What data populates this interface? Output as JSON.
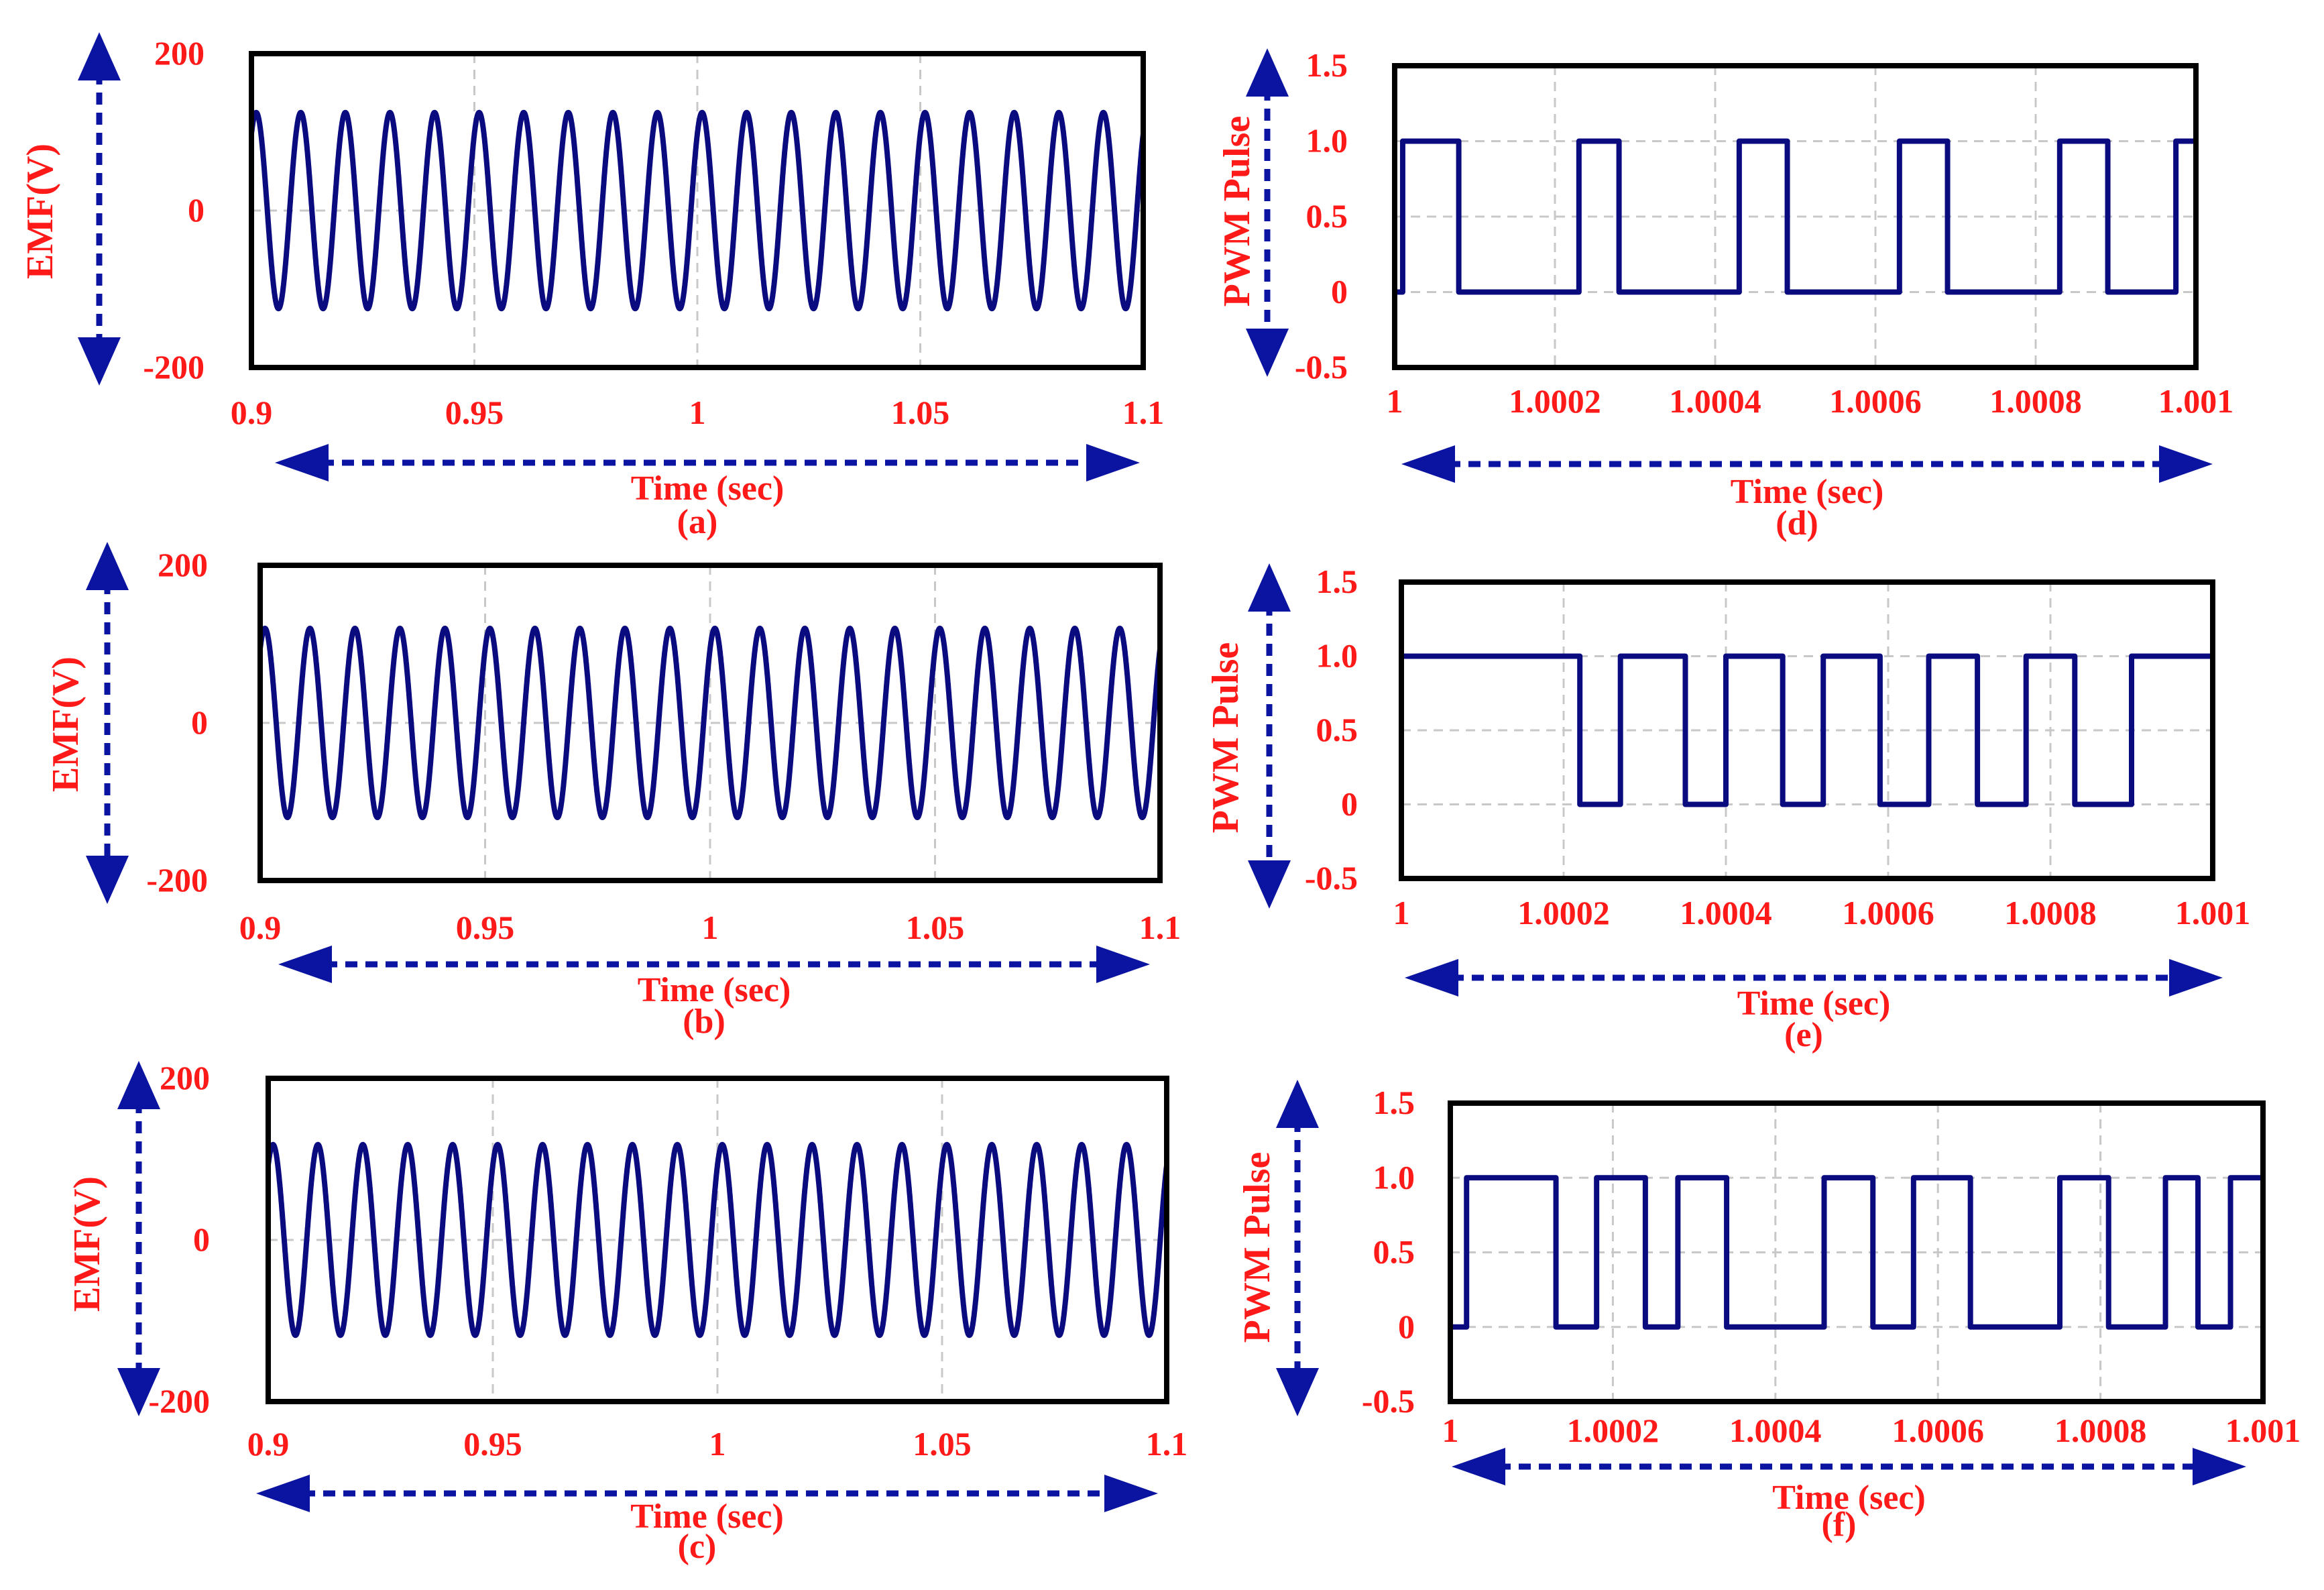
{
  "chart_data": [
    {
      "id": "a",
      "type": "line",
      "caption": "(a)",
      "ylabel": "EMF(V)",
      "xlabel": "Time (sec)",
      "xlim": [
        0.9,
        1.1
      ],
      "ylim": [
        -200,
        200
      ],
      "xticks": [
        "0.9",
        "0.95",
        "1",
        "1.05",
        "1.1"
      ],
      "yticks": [
        "200",
        "0",
        "-200"
      ],
      "series": [
        {
          "amplitude": 125,
          "frequency_hz": 100,
          "shape": "sine"
        }
      ]
    },
    {
      "id": "b",
      "type": "line",
      "caption": "(b)",
      "ylabel": "EMF(V)",
      "xlabel": "Time (sec)",
      "xlim": [
        0.9,
        1.1
      ],
      "ylim": [
        -200,
        200
      ],
      "xticks": [
        "0.9",
        "0.95",
        "1",
        "1.05",
        "1.1"
      ],
      "yticks": [
        "200",
        "0",
        "-200"
      ],
      "series": [
        {
          "amplitude": 120,
          "frequency_hz": 100,
          "shape": "sine"
        }
      ]
    },
    {
      "id": "c",
      "type": "line",
      "caption": "(c)",
      "ylabel": "EMF(V)",
      "xlabel": "Time (sec)",
      "xlim": [
        0.9,
        1.1
      ],
      "ylim": [
        -200,
        200
      ],
      "xticks": [
        "0.9",
        "0.95",
        "1",
        "1.05",
        "1.1"
      ],
      "yticks": [
        "200",
        "0",
        "-200"
      ],
      "series": [
        {
          "amplitude": 118,
          "frequency_hz": 100,
          "shape": "sine"
        }
      ]
    },
    {
      "id": "d",
      "type": "line",
      "caption": "(d)",
      "ylabel": "PWM Pulse",
      "xlabel": "Time (sec)",
      "xlim": [
        1,
        1.001
      ],
      "ylim": [
        -0.5,
        1.5
      ],
      "xticks": [
        "1",
        "1.0002",
        "1.0004",
        "1.0006",
        "1.0008",
        "1.001"
      ],
      "yticks": [
        "1.5",
        "1.0",
        "0.5",
        "0",
        "-0.5"
      ],
      "series": [
        {
          "shape": "step",
          "high_intervals": [
            [
              1.00001,
              1.00008
            ],
            [
              1.00023,
              1.00028
            ],
            [
              1.00043,
              1.00049
            ],
            [
              1.00063,
              1.00069
            ],
            [
              1.00083,
              1.00089
            ],
            [
              1.000975,
              1.001
            ]
          ]
        }
      ]
    },
    {
      "id": "e",
      "type": "line",
      "caption": "(e)",
      "ylabel": "PWM Pulse",
      "xlabel": "Time (sec)",
      "xlim": [
        1,
        1.001
      ],
      "ylim": [
        -0.5,
        1.5
      ],
      "xticks": [
        "1",
        "1.0002",
        "1.0004",
        "1.0006",
        "1.0008",
        "1.001"
      ],
      "yticks": [
        "1.5",
        "1.0",
        "0.5",
        "0",
        "-0.5"
      ],
      "series": [
        {
          "shape": "step",
          "high_intervals": [
            [
              1.0,
              1.00022
            ],
            [
              1.00027,
              1.00035
            ],
            [
              1.0004,
              1.00047
            ],
            [
              1.00052,
              1.00059
            ],
            [
              1.00065,
              1.00071
            ],
            [
              1.00077,
              1.00083
            ],
            [
              1.0009,
              1.001
            ]
          ]
        }
      ]
    },
    {
      "id": "f",
      "type": "line",
      "caption": "(f)",
      "ylabel": "PWM Pulse",
      "xlabel": "Time (sec)",
      "xlim": [
        1,
        1.001
      ],
      "ylim": [
        -0.5,
        1.5
      ],
      "xticks": [
        "1",
        "1.0002",
        "1.0004",
        "1.0006",
        "1.0008",
        "1.001"
      ],
      "yticks": [
        "1.5",
        "1.0",
        "0.5",
        "0",
        "-0.5"
      ],
      "series": [
        {
          "shape": "step",
          "high_intervals": [
            [
              1.00002,
              1.00013
            ],
            [
              1.00018,
              1.00024
            ],
            [
              1.00028,
              1.00034
            ],
            [
              1.00046,
              1.00052
            ],
            [
              1.00057,
              1.00064
            ],
            [
              1.00075,
              1.00081
            ],
            [
              1.00088,
              1.00092
            ],
            [
              1.00096,
              1.001
            ]
          ]
        }
      ]
    }
  ]
}
